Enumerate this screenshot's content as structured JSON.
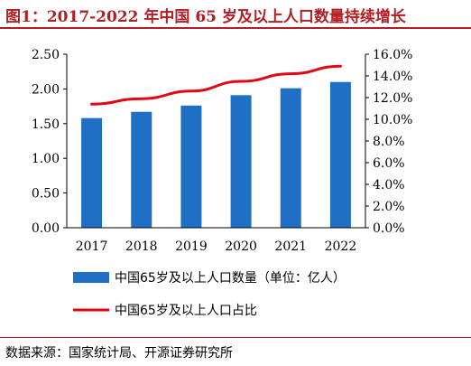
{
  "figure": {
    "title": "图1：2017-2022 年中国 65 岁及以上人口数量持续增长",
    "source": "数据来源：国家统计局、开源证券研究所"
  },
  "chart_data": {
    "type": "bar",
    "categories": [
      "2017",
      "2018",
      "2019",
      "2020",
      "2021",
      "2022"
    ],
    "series": [
      {
        "name": "中国65岁及以上人口数量（单位：亿人）",
        "type": "bar",
        "axis": "left",
        "color": "#1f6fc5",
        "values": [
          1.58,
          1.67,
          1.76,
          1.91,
          2.01,
          2.1
        ]
      },
      {
        "name": "中国65岁及以上人口占比",
        "type": "line",
        "axis": "right",
        "color": "#e30613",
        "values": [
          11.4,
          11.9,
          12.6,
          13.5,
          14.2,
          14.9
        ]
      }
    ],
    "y_left": {
      "lim": [
        0,
        2.5
      ],
      "ticks": [
        "0.00",
        "0.50",
        "1.00",
        "1.50",
        "2.00",
        "2.50"
      ]
    },
    "y_right": {
      "lim": [
        0,
        16
      ],
      "ticks": [
        "0.0%",
        "2.0%",
        "4.0%",
        "6.0%",
        "8.0%",
        "10.0%",
        "12.0%",
        "14.0%",
        "16.0%"
      ]
    },
    "grid": false,
    "legend_position": "bottom"
  }
}
